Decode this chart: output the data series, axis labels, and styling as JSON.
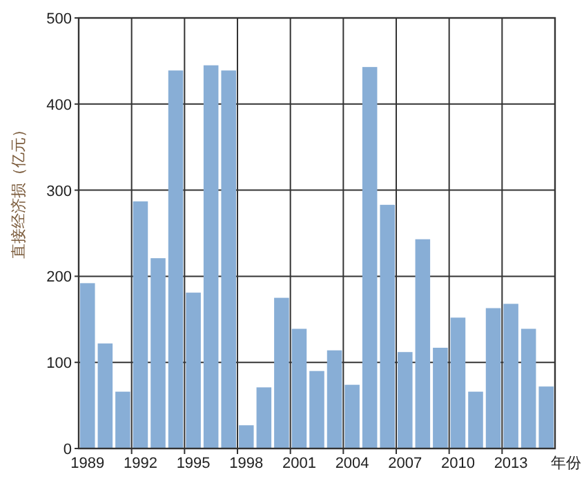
{
  "chart_data": {
    "type": "bar",
    "xlabel": "年份",
    "ylabel": "直接经济损（亿元）",
    "categories": [
      "1989",
      null,
      null,
      "1992",
      null,
      null,
      "1995",
      null,
      null,
      "1998",
      null,
      null,
      "2001",
      null,
      null,
      "2004",
      null,
      null,
      "2007",
      null,
      null,
      "2010",
      null,
      null,
      "2013",
      null,
      null
    ],
    "values": [
      192,
      122,
      66,
      287,
      221,
      439,
      181,
      445,
      439,
      27,
      71,
      175,
      139,
      90,
      114,
      74,
      443,
      283,
      112,
      243,
      117,
      152,
      66,
      163,
      168,
      139,
      72
    ],
    "color": "#88aed6",
    "ylim": [
      0,
      500
    ],
    "yticks": [
      0,
      100,
      200,
      300,
      400,
      500
    ],
    "grid": true
  }
}
